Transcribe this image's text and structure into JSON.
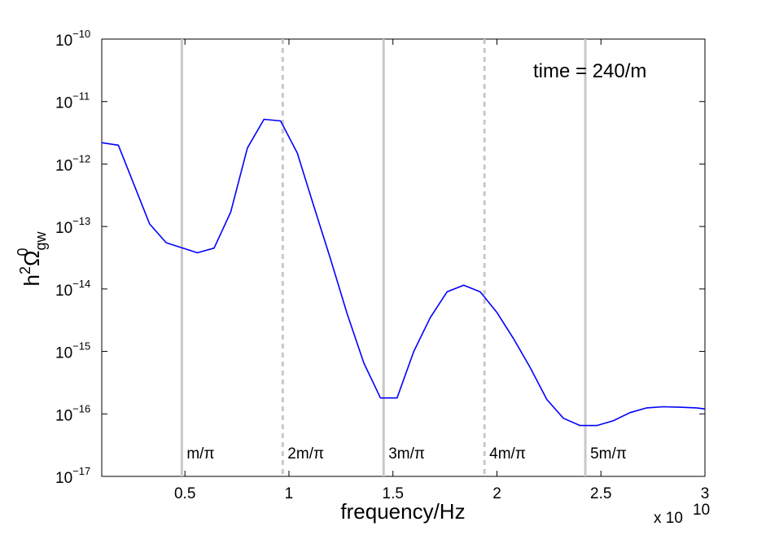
{
  "chart_data": {
    "type": "line",
    "xlabel": "frequency/Hz",
    "x_multiplier": "x 10",
    "x_multiplier_exp": "10",
    "ylabel": "h",
    "ylabel_sup": "2",
    "ylabel_omega": "Ω",
    "ylabel_omega_sup": "0",
    "ylabel_omega_sub": "gw",
    "xlim": [
      0.1,
      3.0
    ],
    "ylim_log10": [
      -17,
      -10
    ],
    "yscale": "log",
    "grid": false,
    "annotation": "time = 240/m",
    "x_ticks": [
      {
        "value": 0.5,
        "label": "0.5"
      },
      {
        "value": 1.0,
        "label": "1"
      },
      {
        "value": 1.5,
        "label": "1.5"
      },
      {
        "value": 2.0,
        "label": "2"
      },
      {
        "value": 2.5,
        "label": "2.5"
      },
      {
        "value": 3.0,
        "label": "3"
      }
    ],
    "y_ticks": [
      {
        "exp": -10,
        "base": "10",
        "sup": "−10"
      },
      {
        "exp": -11,
        "base": "10",
        "sup": "−11"
      },
      {
        "exp": -12,
        "base": "10",
        "sup": "−12"
      },
      {
        "exp": -13,
        "base": "10",
        "sup": "−13"
      },
      {
        "exp": -14,
        "base": "10",
        "sup": "−14"
      },
      {
        "exp": -15,
        "base": "10",
        "sup": "−15"
      },
      {
        "exp": -16,
        "base": "10",
        "sup": "−16"
      },
      {
        "exp": -17,
        "base": "10",
        "sup": "−17"
      }
    ],
    "reference_lines": [
      {
        "x": 0.485,
        "label": "m/π",
        "style": "solid"
      },
      {
        "x": 0.97,
        "label": "2m/π",
        "style": "dashed"
      },
      {
        "x": 1.455,
        "label": "3m/π",
        "style": "solid"
      },
      {
        "x": 1.94,
        "label": "4m/π",
        "style": "dashed"
      },
      {
        "x": 2.425,
        "label": "5m/π",
        "style": "solid"
      }
    ],
    "series": [
      {
        "color": "#0000ff",
        "x": [
          0.1,
          0.18,
          0.33,
          0.41,
          0.56,
          0.64,
          0.72,
          0.8,
          0.88,
          0.96,
          1.04,
          1.12,
          1.2,
          1.28,
          1.36,
          1.44,
          1.52,
          1.6,
          1.68,
          1.76,
          1.84,
          1.92,
          2.0,
          2.08,
          2.16,
          2.24,
          2.32,
          2.4,
          2.48,
          2.56,
          2.64,
          2.72,
          2.8,
          2.88,
          2.96,
          3.0
        ],
        "y": [
          2.2e-12,
          2e-12,
          1.1e-13,
          5.5e-14,
          3.8e-14,
          4.5e-14,
          1.7e-13,
          1.8e-12,
          5.2e-12,
          4.9e-12,
          1.5e-12,
          2.1e-13,
          3e-14,
          4e-15,
          6.5e-16,
          1.8e-16,
          1.8e-16,
          1e-15,
          3.5e-15,
          9e-15,
          1.15e-14,
          9e-15,
          4.2e-15,
          1.6e-15,
          5.5e-16,
          1.7e-16,
          8.5e-17,
          6.5e-17,
          6.5e-17,
          7.8e-17,
          1.05e-16,
          1.25e-16,
          1.3e-16,
          1.28e-16,
          1.25e-16,
          1.2e-16
        ]
      }
    ]
  }
}
